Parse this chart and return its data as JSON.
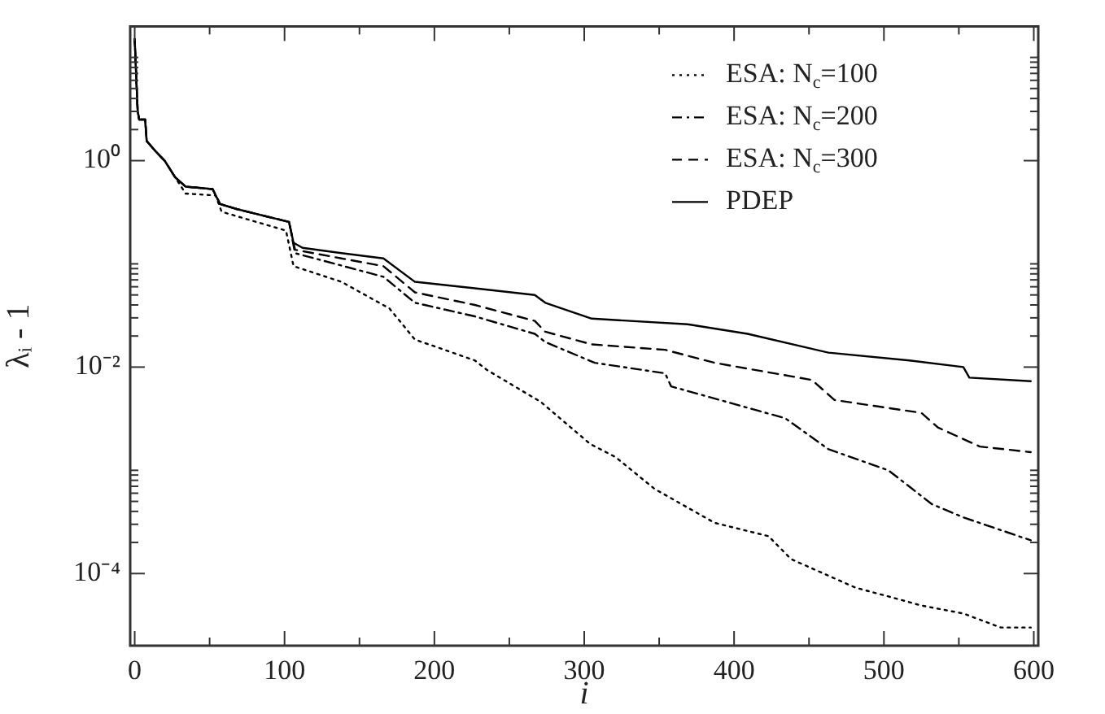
{
  "chart_data": {
    "type": "line",
    "xlabel": "i",
    "ylabel": "λᵢ - 1",
    "log": "y",
    "grid": false,
    "legend": "top right",
    "marker": "none",
    "xlim": [
      -3,
      603
    ],
    "xticks": [
      0,
      {
        "value": 50,
        "label": null
      },
      100,
      {
        "value": 150,
        "label": null
      },
      200,
      {
        "value": 250,
        "label": null
      },
      300,
      {
        "value": 350,
        "label": null
      },
      400,
      {
        "value": 450,
        "label": null
      },
      500,
      {
        "value": 550,
        "label": null
      },
      600
    ],
    "ylim": [
      2e-05,
      20
    ],
    "yticks": [
      {
        "value": 0.0001,
        "label": "10⁻⁴"
      },
      {
        "value": 0.0002,
        "label": null
      },
      {
        "value": 0.0003,
        "label": null
      },
      {
        "value": 0.0004,
        "label": null
      },
      {
        "value": 0.0005,
        "label": null
      },
      {
        "value": 0.0006,
        "label": null
      },
      {
        "value": 0.0007,
        "label": null
      },
      {
        "value": 0.0008,
        "label": null
      },
      {
        "value": 0.0009,
        "label": null
      },
      {
        "value": 0.001,
        "label": null
      },
      {
        "value": 0.01,
        "label": "10⁻²"
      },
      {
        "value": 0.02,
        "label": null
      },
      {
        "value": 0.03,
        "label": null
      },
      {
        "value": 0.04,
        "label": null
      },
      {
        "value": 0.05,
        "label": null
      },
      {
        "value": 0.06,
        "label": null
      },
      {
        "value": 0.07,
        "label": null
      },
      {
        "value": 0.08,
        "label": null
      },
      {
        "value": 0.09,
        "label": null
      },
      {
        "value": 0.1,
        "label": null
      },
      {
        "value": 1,
        "label": "10⁰"
      },
      {
        "value": 2,
        "label": null
      },
      {
        "value": 3,
        "label": null
      },
      {
        "value": 4,
        "label": null
      },
      {
        "value": 5,
        "label": null
      },
      {
        "value": 6,
        "label": null
      },
      {
        "value": 7,
        "label": null
      },
      {
        "value": 8,
        "label": null
      },
      {
        "value": 9,
        "label": null
      },
      {
        "value": 10,
        "label": null
      }
    ],
    "series": [
      {
        "name": "ESA: N$_{c}$=100",
        "color": "#000000",
        "line_style": "dotted",
        "x": [
          0,
          2,
          3,
          7,
          8,
          14,
          20,
          27,
          34,
          54,
          58,
          101,
          106,
          138,
          170,
          187,
          227,
          235,
          271,
          304,
          321,
          347,
          387,
          423,
          438,
          481,
          503,
          525,
          553,
          578,
          598
        ],
        "values": [
          15,
          3,
          2.5,
          2.5,
          1.55,
          1.23,
          1,
          0.69,
          0.48,
          0.46,
          0.32,
          0.21,
          0.095,
          0.067,
          0.037,
          0.0185,
          0.0116,
          0.0094,
          0.0046,
          0.0018,
          0.00134,
          0.00066,
          0.00031,
          0.00023,
          0.000138,
          7.3e-05,
          6e-05,
          4.9e-05,
          4.1e-05,
          3e-05,
          3e-05
        ]
      },
      {
        "name": "ESA: N$_{c}$=200",
        "color": "#000000",
        "line_style": "dashdot",
        "x": [
          0,
          2,
          3,
          7,
          8,
          14,
          20,
          27,
          34,
          52,
          57,
          68,
          83,
          103,
          107,
          166,
          187,
          227,
          267,
          274,
          307,
          354,
          358,
          434,
          463,
          503,
          532,
          553,
          598
        ],
        "values": [
          15,
          3,
          2.5,
          2.5,
          1.55,
          1.23,
          1,
          0.69,
          0.56,
          0.53,
          0.38,
          0.34,
          0.3,
          0.255,
          0.127,
          0.075,
          0.042,
          0.031,
          0.021,
          0.0175,
          0.011,
          0.0087,
          0.0065,
          0.0032,
          0.0016,
          0.001,
          0.00047,
          0.00035,
          0.00021
        ]
      },
      {
        "name": "ESA: N$_{c}$=300",
        "color": "#000000",
        "line_style": "dashed",
        "x": [
          0,
          2,
          3,
          7,
          8,
          14,
          20,
          27,
          34,
          52,
          57,
          68,
          83,
          103,
          107,
          138,
          166,
          187,
          227,
          267,
          274,
          305,
          354,
          387,
          452,
          467,
          525,
          536,
          564,
          598
        ],
        "values": [
          15,
          3,
          2.5,
          2.5,
          1.55,
          1.23,
          1,
          0.69,
          0.56,
          0.53,
          0.38,
          0.34,
          0.3,
          0.255,
          0.137,
          0.113,
          0.095,
          0.053,
          0.04,
          0.028,
          0.022,
          0.0166,
          0.0147,
          0.011,
          0.0075,
          0.0048,
          0.0036,
          0.0026,
          0.0017,
          0.0015
        ]
      },
      {
        "name": "PDEP",
        "color": "#000000",
        "line_style": "solid",
        "x": [
          0,
          2,
          3,
          7,
          8,
          14,
          20,
          27,
          34,
          52,
          57,
          68,
          83,
          103,
          106,
          112,
          138,
          166,
          187,
          227,
          267,
          274,
          305,
          369,
          409,
          463,
          517,
          553,
          557,
          598
        ],
        "values": [
          15,
          3,
          2.5,
          2.5,
          1.55,
          1.23,
          1,
          0.69,
          0.56,
          0.53,
          0.38,
          0.34,
          0.3,
          0.255,
          0.16,
          0.143,
          0.127,
          0.113,
          0.067,
          0.058,
          0.05,
          0.042,
          0.0295,
          0.026,
          0.021,
          0.0138,
          0.0116,
          0.01,
          0.0079,
          0.0073
        ]
      }
    ]
  }
}
